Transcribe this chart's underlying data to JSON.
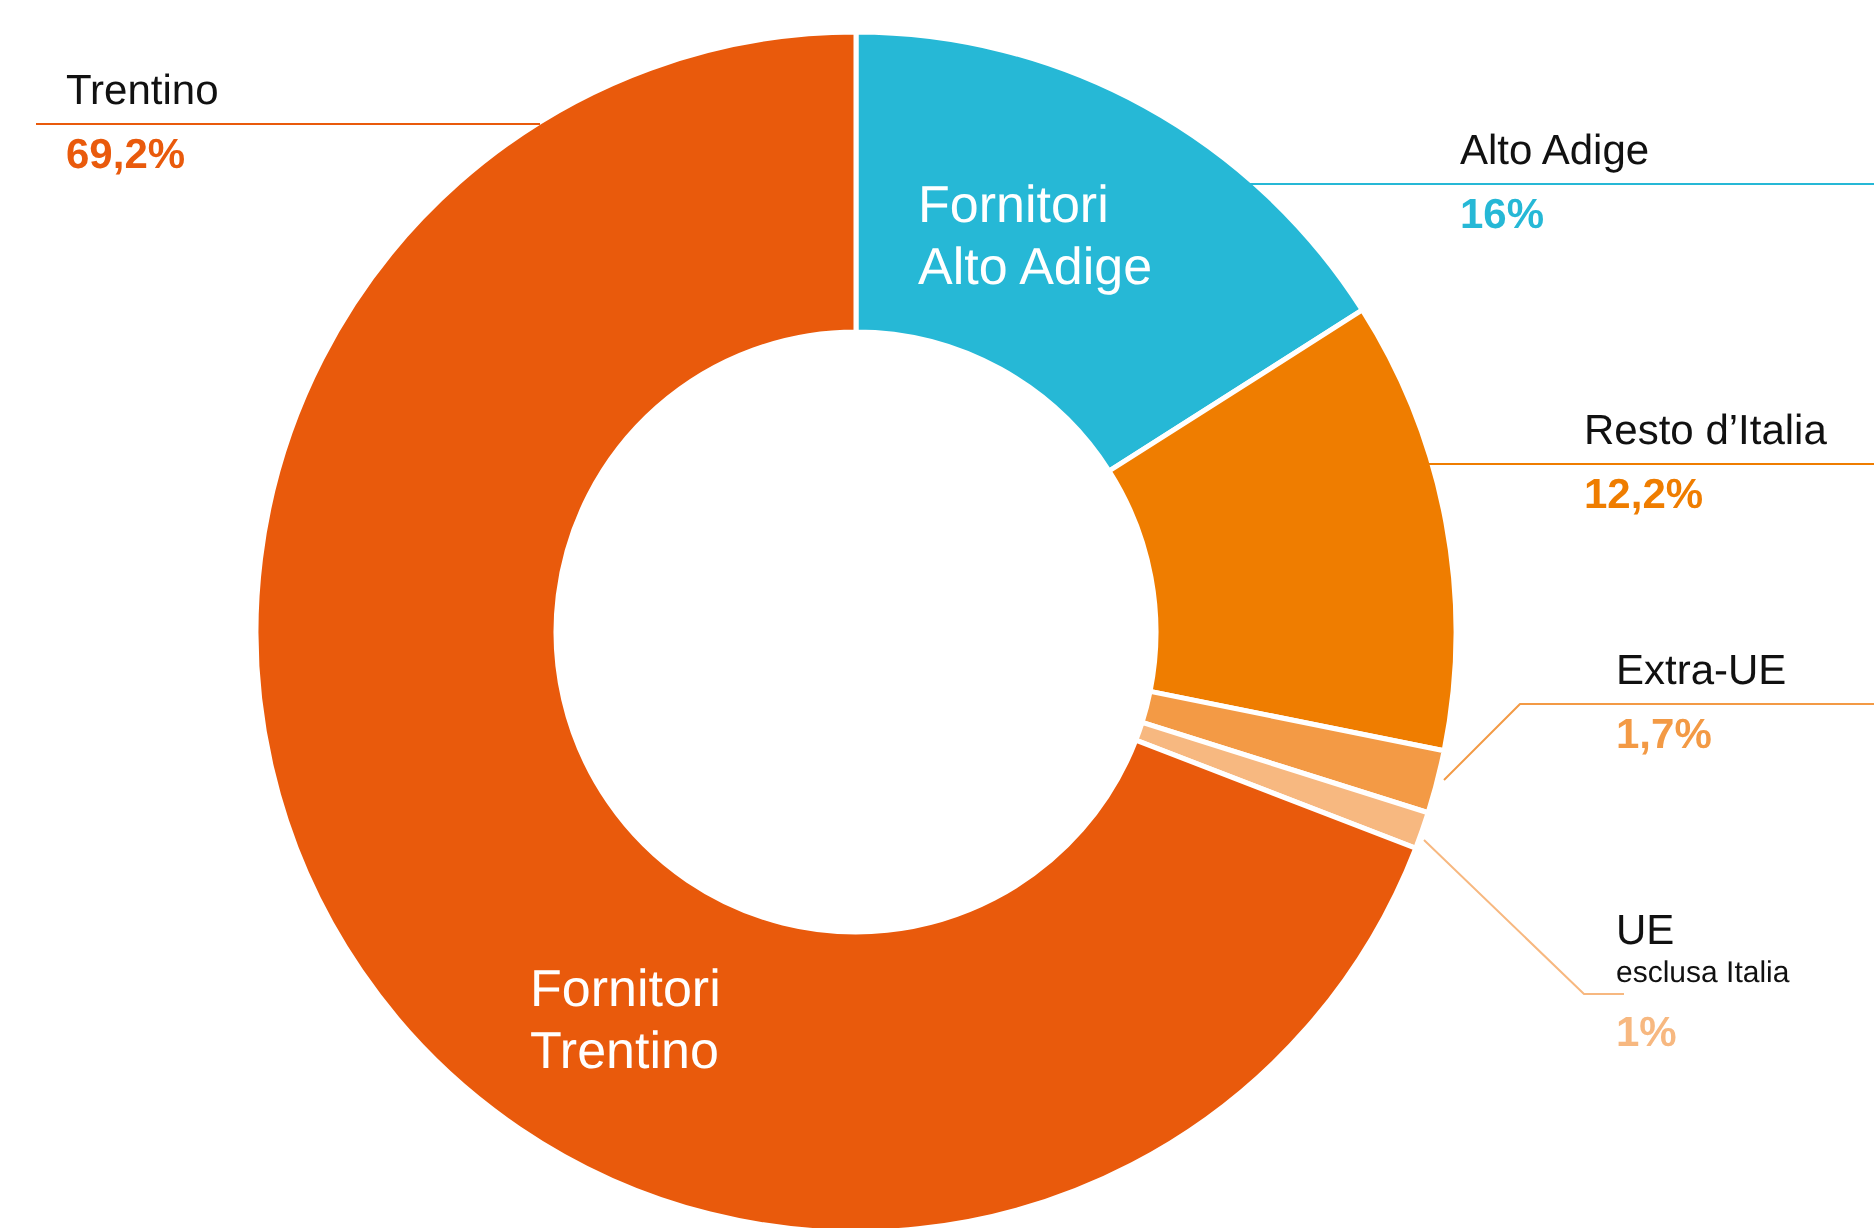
{
  "chart_data": {
    "type": "donut",
    "categories": [
      "Alto Adige",
      "Resto d’Italia",
      "Extra-UE",
      "UE\nesclusa Italia",
      "Trentino"
    ],
    "values": [
      16,
      12.2,
      1.7,
      1,
      69.2
    ],
    "value_labels": [
      "16%",
      "12,2%",
      "1,7%",
      "1%",
      "69,2%"
    ],
    "colors": [
      "#26b8d6",
      "#ef7d00",
      "#f39a45",
      "#f7b880",
      "#e95a0c"
    ],
    "annotations": [
      "Fornitori\nAlto Adige",
      "Fornitori\nTrentino"
    ]
  }
}
